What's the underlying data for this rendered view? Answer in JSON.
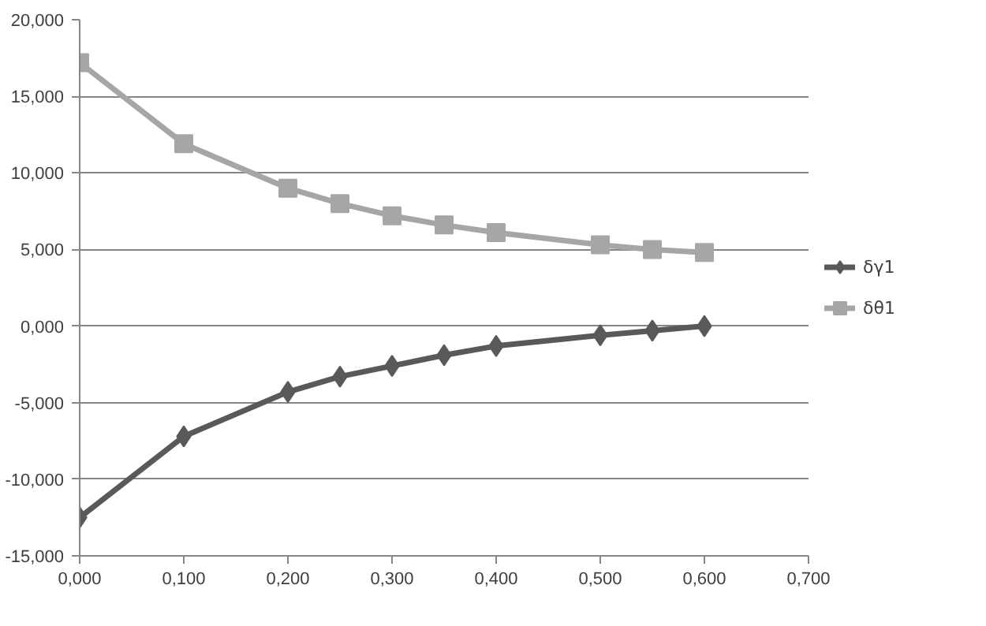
{
  "chart_data": {
    "type": "line",
    "x": [
      0,
      0.1,
      0.2,
      0.25,
      0.3,
      0.35,
      0.4,
      0.5,
      0.55,
      0.6
    ],
    "series": [
      {
        "name": "δγ1",
        "color": "#595959",
        "marker": "diamond",
        "values": [
          -12.5,
          -7.2,
          -4.3,
          -3.3,
          -2.6,
          -1.9,
          -1.3,
          -0.6,
          -0.3,
          0
        ]
      },
      {
        "name": "δθ1",
        "color": "#a6a6a6",
        "marker": "square",
        "values": [
          17.2,
          11.9,
          9.0,
          8.0,
          7.2,
          6.6,
          6.1,
          5.3,
          5.0,
          4.8
        ]
      }
    ],
    "xlim": [
      0,
      0.7
    ],
    "ylim": [
      -15,
      20
    ],
    "xticks": [
      {
        "value": 0,
        "label": "0,000"
      },
      {
        "value": 0.1,
        "label": "0,100"
      },
      {
        "value": 0.2,
        "label": "0,200"
      },
      {
        "value": 0.3,
        "label": "0,300"
      },
      {
        "value": 0.4,
        "label": "0,400"
      },
      {
        "value": 0.5,
        "label": "0,500"
      },
      {
        "value": 0.6,
        "label": "0,600"
      },
      {
        "value": 0.7,
        "label": "0,700"
      }
    ],
    "yticks": [
      {
        "value": -15,
        "label": "-15,000"
      },
      {
        "value": -10,
        "label": "-10,000"
      },
      {
        "value": -5,
        "label": "-5,000"
      },
      {
        "value": 0,
        "label": "0,000"
      },
      {
        "value": 5,
        "label": "5,000"
      },
      {
        "value": 10,
        "label": "10,000"
      },
      {
        "value": 15,
        "label": "15,000"
      },
      {
        "value": 20,
        "label": "20,000"
      }
    ],
    "grid": "y",
    "legend": "right",
    "line_style": "solid"
  }
}
